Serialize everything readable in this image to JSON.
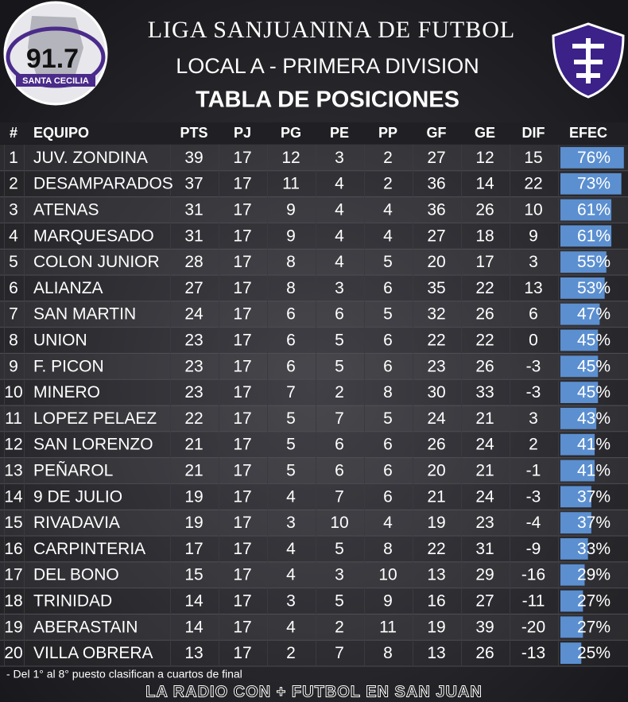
{
  "header": {
    "logo_text": "91.7",
    "logo_subtext": "SANTA CECILIA",
    "title": "LIGA SANJUANINA DE FUTBOL",
    "subtitle": "LOCAL A - PRIMERA DIVISION",
    "heading": "TABLA DE POSICIONES"
  },
  "table": {
    "columns": [
      "#",
      "EQUIPO",
      "PTS",
      "PJ",
      "PG",
      "PE",
      "PP",
      "GF",
      "GE",
      "DIF",
      "EFEC"
    ],
    "rows": [
      [
        1,
        "JUV. ZONDINA",
        39,
        17,
        12,
        3,
        2,
        27,
        12,
        15,
        {
          "value": 76,
          "label": "76%"
        }
      ],
      [
        2,
        "DESAMPARADOS",
        37,
        17,
        11,
        4,
        2,
        36,
        14,
        22,
        {
          "value": 73,
          "label": "73%"
        }
      ],
      [
        3,
        "ATENAS",
        31,
        17,
        9,
        4,
        4,
        36,
        26,
        10,
        {
          "value": 61,
          "label": "61%"
        }
      ],
      [
        4,
        "MARQUESADO",
        31,
        17,
        9,
        4,
        4,
        27,
        18,
        9,
        {
          "value": 61,
          "label": "61%"
        }
      ],
      [
        5,
        "COLON JUNIOR",
        28,
        17,
        8,
        4,
        5,
        20,
        17,
        3,
        {
          "value": 55,
          "label": "55%"
        }
      ],
      [
        6,
        "ALIANZA",
        27,
        17,
        8,
        3,
        6,
        35,
        22,
        13,
        {
          "value": 53,
          "label": "53%"
        }
      ],
      [
        7,
        "SAN MARTIN",
        24,
        17,
        6,
        6,
        5,
        32,
        26,
        6,
        {
          "value": 47,
          "label": "47%"
        }
      ],
      [
        8,
        "UNION",
        23,
        17,
        6,
        5,
        6,
        22,
        22,
        0,
        {
          "value": 45,
          "label": "45%"
        }
      ],
      [
        9,
        "F. PICON",
        23,
        17,
        6,
        5,
        6,
        23,
        26,
        -3,
        {
          "value": 45,
          "label": "45%"
        }
      ],
      [
        10,
        "MINERO",
        23,
        17,
        7,
        2,
        8,
        30,
        33,
        -3,
        {
          "value": 45,
          "label": "45%"
        }
      ],
      [
        11,
        "LOPEZ PELAEZ",
        22,
        17,
        5,
        7,
        5,
        24,
        21,
        3,
        {
          "value": 43,
          "label": "43%"
        }
      ],
      [
        12,
        "SAN LORENZO",
        21,
        17,
        5,
        6,
        6,
        26,
        24,
        2,
        {
          "value": 41,
          "label": "41%"
        }
      ],
      [
        13,
        "PEÑAROL",
        21,
        17,
        5,
        6,
        6,
        20,
        21,
        -1,
        {
          "value": 41,
          "label": "41%"
        }
      ],
      [
        14,
        "9 DE JULIO",
        19,
        17,
        4,
        7,
        6,
        21,
        24,
        -3,
        {
          "value": 37,
          "label": "37%"
        }
      ],
      [
        15,
        "RIVADAVIA",
        19,
        17,
        3,
        10,
        4,
        19,
        23,
        -4,
        {
          "value": 37,
          "label": "37%"
        }
      ],
      [
        16,
        "CARPINTERIA",
        17,
        17,
        4,
        5,
        8,
        22,
        31,
        -9,
        {
          "value": 33,
          "label": "33%"
        }
      ],
      [
        17,
        "DEL BONO",
        15,
        17,
        4,
        3,
        10,
        13,
        29,
        -16,
        {
          "value": 29,
          "label": "29%"
        }
      ],
      [
        18,
        "TRINIDAD",
        14,
        17,
        3,
        5,
        9,
        16,
        27,
        -11,
        {
          "value": 27,
          "label": "27%"
        }
      ],
      [
        19,
        "ABERASTAIN",
        14,
        17,
        4,
        2,
        11,
        19,
        39,
        -20,
        {
          "value": 27,
          "label": "27%"
        }
      ],
      [
        20,
        "VILLA OBRERA",
        13,
        17,
        2,
        7,
        8,
        13,
        26,
        -13,
        {
          "value": 25,
          "label": "25%"
        }
      ]
    ]
  },
  "footnote": "- Del 1° al 8° puesto clasifican a cuartos de final",
  "footer": "LA RADIO CON + FUTBOL EN SAN JUAN"
}
